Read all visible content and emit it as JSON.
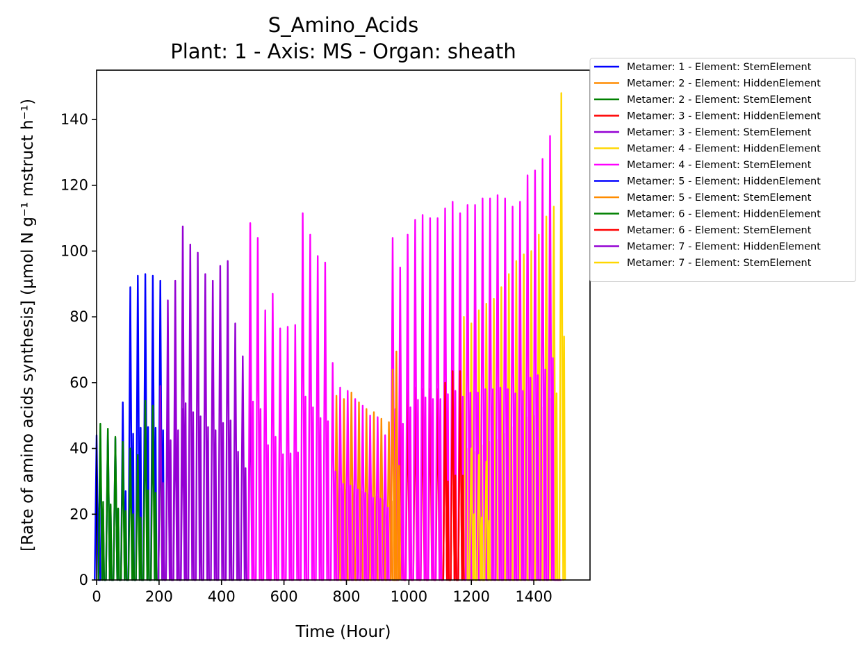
{
  "chart_data": {
    "type": "line",
    "title": "S_Amino_Acids",
    "subtitle": "Plant: 1 - Axis: MS - Organ: sheath",
    "xlabel": "Time (Hour)",
    "ylabel": "[Rate of amino acids synthesis] (µmol N g⁻¹ mstruct h⁻¹)",
    "xlim": [
      0,
      1580
    ],
    "ylim": [
      0,
      155
    ],
    "xticks": [
      0,
      200,
      400,
      600,
      800,
      1000,
      1200,
      1400
    ],
    "yticks": [
      0,
      20,
      40,
      60,
      80,
      100,
      120,
      140
    ],
    "grid": false,
    "legend_position": "outside-top-right",
    "series": [
      {
        "name": "Metamer: 1 - Element: StemElement",
        "color": "#0000ff",
        "x": [
          0,
          12,
          36,
          60,
          84,
          108,
          132,
          156,
          180,
          204
        ],
        "values": [
          44,
          43,
          45,
          43,
          54,
          89,
          92.5,
          93,
          92.5,
          91
        ]
      },
      {
        "name": "Metamer: 2 - Element: HiddenElement",
        "color": "#ff8c00",
        "x": [
          768,
          792,
          816,
          840,
          864,
          888,
          912,
          936,
          960
        ],
        "values": [
          56,
          55,
          57,
          54,
          52,
          51,
          49,
          48,
          46
        ]
      },
      {
        "name": "Metamer: 2 - Element: StemElement",
        "color": "#008000",
        "x": [
          12,
          36,
          60,
          84,
          108,
          132,
          156,
          180,
          204
        ],
        "values": [
          47.5,
          46,
          43.5,
          42,
          40,
          38,
          54.5,
          53,
          51
        ]
      },
      {
        "name": "Metamer: 3 - Element: HiddenElement",
        "color": "#ff0000",
        "x": [
          972,
          996,
          1020,
          1044,
          1068,
          1092,
          1116,
          1140,
          1164
        ],
        "values": [
          58,
          58,
          58.5,
          58,
          58,
          58,
          57.5,
          63.5,
          63.5
        ]
      },
      {
        "name": "Metamer: 3 - Element: StemElement",
        "color": "#9400d3",
        "x": [
          228,
          252,
          276,
          300,
          324,
          348,
          372,
          396,
          420,
          444,
          468,
          492
        ],
        "values": [
          85,
          91,
          107.5,
          102,
          99.5,
          93,
          91,
          95.5,
          97,
          78,
          68,
          65
        ]
      },
      {
        "name": "Metamer: 4 - Element: HiddenElement",
        "color": "#ffd700",
        "x": [
          1176,
          1200,
          1224,
          1248,
          1272,
          1296,
          1320,
          1344,
          1368,
          1392,
          1416,
          1440,
          1464,
          1488
        ],
        "values": [
          80,
          78,
          82,
          84,
          85.5,
          89,
          93,
          97,
          99,
          100,
          105,
          110.5,
          113.5,
          148
        ]
      },
      {
        "name": "Metamer: 4 - Element: StemElement",
        "color": "#ff00ff",
        "x": [
          492,
          516,
          540,
          564,
          588,
          612,
          636,
          660,
          684,
          708,
          732,
          756,
          780,
          804,
          828,
          852,
          876,
          900,
          924,
          948,
          972,
          996,
          1020,
          1044,
          1068,
          1092,
          1116,
          1140,
          1164,
          1188,
          1212,
          1236,
          1260,
          1284,
          1308,
          1332,
          1356,
          1380,
          1404,
          1428,
          1452,
          1476
        ],
        "values": [
          108.5,
          104,
          82,
          87,
          76.5,
          77,
          77.5,
          111.5,
          105,
          98.5,
          96.5,
          66,
          58.5,
          57.5,
          55,
          53,
          50,
          49.5,
          44,
          104,
          95,
          105,
          109.5,
          111,
          110,
          110,
          113,
          115,
          111.5,
          114,
          114,
          116,
          116,
          117,
          116,
          113.5,
          115,
          123,
          124.5,
          128,
          135,
          0
        ]
      },
      {
        "name": "Metamer: 5 - Element: HiddenElement",
        "color": "#0000ff",
        "x": [],
        "values": []
      },
      {
        "name": "Metamer: 5 - Element: StemElement",
        "color": "#ff8c00",
        "x": [
          948,
          960
        ],
        "values": [
          64,
          69.5
        ]
      },
      {
        "name": "Metamer: 6 - Element: HiddenElement",
        "color": "#008000",
        "x": [],
        "values": []
      },
      {
        "name": "Metamer: 6 - Element: StemElement",
        "color": "#ff0000",
        "x": [
          1116,
          1140,
          1164
        ],
        "values": [
          60,
          63.5,
          63.5
        ]
      },
      {
        "name": "Metamer: 7 - Element: HiddenElement",
        "color": "#9400d3",
        "x": [
          204,
          228,
          252,
          276
        ],
        "values": [
          59,
          57,
          55,
          52
        ]
      },
      {
        "name": "Metamer: 7 - Element: StemElement",
        "color": "#ffd700",
        "x": [
          1200,
          1224,
          1248
        ],
        "values": [
          40,
          38,
          36
        ]
      }
    ]
  }
}
